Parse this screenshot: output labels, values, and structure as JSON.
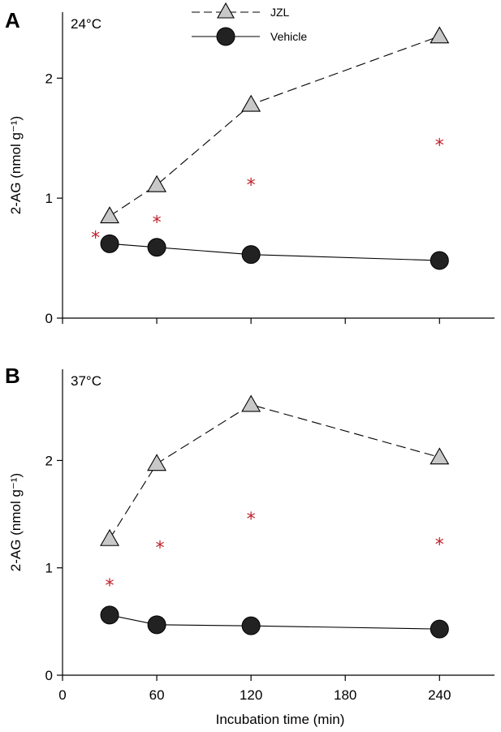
{
  "legend": {
    "jzl": "JZL",
    "vehicle": "Vehicle"
  },
  "shared_x_axis": {
    "label": "Incubation time (min)",
    "ticks": [
      "0",
      "60",
      "120",
      "180",
      "240"
    ],
    "tick_values": [
      0,
      60,
      120,
      180,
      240
    ],
    "xlim": [
      0,
      275
    ]
  },
  "colors": {
    "jzl_fill": "#c8c8c8",
    "vehicle_fill": "#222222",
    "significance": "#c0202a"
  },
  "chart_data": [
    {
      "type": "line",
      "panel": "A",
      "title": "24°C",
      "ylabel": "2-AG (nmol g⁻¹)",
      "ylim": [
        0,
        2.55
      ],
      "y_ticks": [
        "0",
        "1",
        "2"
      ],
      "y_tick_values": [
        0,
        1,
        2
      ],
      "x": [
        30,
        60,
        120,
        240
      ],
      "series": [
        {
          "name": "JZL",
          "marker": "triangle",
          "line": "dashed",
          "values": [
            0.85,
            1.11,
            1.78,
            2.35
          ]
        },
        {
          "name": "Vehicle",
          "marker": "circle",
          "line": "solid",
          "values": [
            0.62,
            0.59,
            0.53,
            0.48
          ]
        }
      ],
      "significance_markers": [
        {
          "x": 21,
          "y": 0.7,
          "text": "*"
        },
        {
          "x": 60,
          "y": 0.83,
          "text": "*"
        },
        {
          "x": 120,
          "y": 1.14,
          "text": "*"
        },
        {
          "x": 240,
          "y": 1.47,
          "text": "*"
        }
      ]
    },
    {
      "type": "line",
      "panel": "B",
      "title": "37°C",
      "ylabel": "2-AG (nmol g⁻¹)",
      "ylim": [
        0,
        2.85
      ],
      "y_ticks": [
        "0",
        "1",
        "2"
      ],
      "y_tick_values": [
        0,
        1,
        2
      ],
      "x": [
        30,
        60,
        120,
        240
      ],
      "series": [
        {
          "name": "JZL",
          "marker": "triangle",
          "line": "dashed",
          "values": [
            1.27,
            1.97,
            2.52,
            2.03
          ]
        },
        {
          "name": "Vehicle",
          "marker": "circle",
          "line": "solid",
          "values": [
            0.56,
            0.47,
            0.46,
            0.43
          ]
        }
      ],
      "significance_markers": [
        {
          "x": 30,
          "y": 0.87,
          "text": "*"
        },
        {
          "x": 62,
          "y": 1.22,
          "text": "*"
        },
        {
          "x": 120,
          "y": 1.49,
          "text": "*"
        },
        {
          "x": 240,
          "y": 1.25,
          "text": "*"
        }
      ]
    }
  ]
}
